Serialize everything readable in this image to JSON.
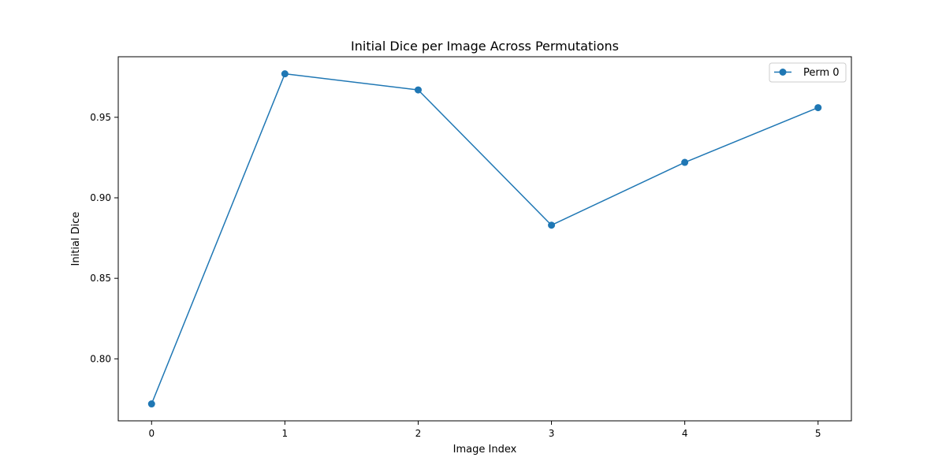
{
  "chart_data": {
    "type": "line",
    "title": "Initial Dice per Image Across Permutations",
    "xlabel": "Image Index",
    "ylabel": "Initial Dice",
    "x": [
      0,
      1,
      2,
      3,
      4,
      5
    ],
    "xlim": [
      -0.25,
      5.25
    ],
    "ylim": [
      0.7615,
      0.9876
    ],
    "x_ticks": [
      0,
      1,
      2,
      3,
      4,
      5
    ],
    "y_ticks": [
      0.8,
      0.85,
      0.9,
      0.95
    ],
    "y_tick_labels": [
      "0.80",
      "0.85",
      "0.90",
      "0.95"
    ],
    "grid": false,
    "legend_position": "top-right",
    "series": [
      {
        "name": "Perm 0",
        "color": "#1f77b4",
        "marker": "circle",
        "values": [
          0.772,
          0.977,
          0.967,
          0.883,
          0.922,
          0.956
        ]
      }
    ]
  }
}
